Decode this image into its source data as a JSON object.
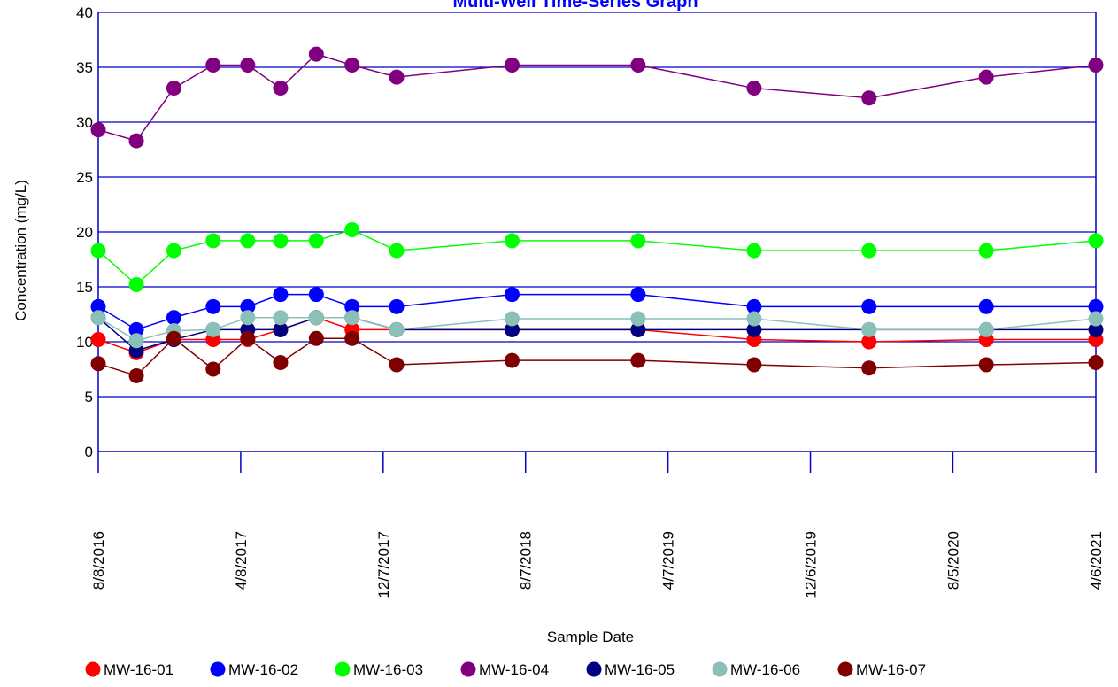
{
  "chart_data": {
    "type": "line",
    "title": "Multi-Well Time-Series Graph",
    "xlabel": "Sample Date",
    "ylabel": "Concentration (mg/L)",
    "ylim": [
      0,
      40
    ],
    "yticks": [
      0,
      5,
      10,
      15,
      20,
      25,
      30,
      35,
      40
    ],
    "xlim": [
      "2016-08-08",
      "2021-04-06"
    ],
    "xtick_labels": [
      "8/8/2016",
      "4/8/2017",
      "12/7/2017",
      "8/7/2018",
      "4/7/2019",
      "12/6/2019",
      "8/5/2020",
      "4/6/2021"
    ],
    "xtick_dates": [
      "2016-08-08",
      "2017-04-08",
      "2017-12-07",
      "2018-08-07",
      "2019-04-07",
      "2019-12-06",
      "2020-08-05",
      "2021-04-06"
    ],
    "grid": "horizontal",
    "legend": "bottom",
    "x": [
      "2016-08-08",
      "2016-10-12",
      "2016-12-15",
      "2017-02-20",
      "2017-04-20",
      "2017-06-15",
      "2017-08-15",
      "2017-10-15",
      "2017-12-30",
      "2018-07-15",
      "2019-02-15",
      "2019-09-01",
      "2020-03-15",
      "2020-10-01",
      "2021-04-06"
    ],
    "series": [
      {
        "name": "MW-16-01",
        "color": "#ff0000",
        "values": [
          10.2,
          9.0,
          10.2,
          10.2,
          10.2,
          11.1,
          12.2,
          11.1,
          11.1,
          11.1,
          11.1,
          10.2,
          10.0,
          10.2,
          10.2
        ]
      },
      {
        "name": "MW-16-02",
        "color": "#0000ff",
        "values": [
          13.2,
          11.1,
          12.2,
          13.2,
          13.2,
          14.3,
          14.3,
          13.2,
          13.2,
          14.3,
          14.3,
          13.2,
          13.2,
          13.2,
          13.2
        ]
      },
      {
        "name": "MW-16-03",
        "color": "#00ff00",
        "values": [
          18.3,
          15.2,
          18.3,
          19.2,
          19.2,
          19.2,
          19.2,
          20.2,
          18.3,
          19.2,
          19.2,
          18.3,
          18.3,
          18.3,
          19.2
        ]
      },
      {
        "name": "MW-16-04",
        "color": "#800080",
        "values": [
          29.3,
          28.3,
          33.1,
          35.2,
          35.2,
          33.1,
          36.2,
          35.2,
          34.1,
          35.2,
          35.2,
          33.1,
          32.2,
          34.1,
          35.2
        ]
      },
      {
        "name": "MW-16-05",
        "color": "#000080",
        "values": [
          12.2,
          9.2,
          10.2,
          11.1,
          11.1,
          11.1,
          12.2,
          12.2,
          11.1,
          11.1,
          11.1,
          11.1,
          11.1,
          11.1,
          11.1
        ]
      },
      {
        "name": "MW-16-06",
        "color": "#8ac0b8",
        "values": [
          12.2,
          10.1,
          11.0,
          11.1,
          12.2,
          12.2,
          12.2,
          12.2,
          11.1,
          12.1,
          12.1,
          12.1,
          11.1,
          11.1,
          12.1
        ]
      },
      {
        "name": "MW-16-07",
        "color": "#800000",
        "values": [
          8.0,
          6.9,
          10.3,
          7.5,
          10.3,
          8.1,
          10.3,
          10.3,
          7.9,
          8.3,
          8.3,
          7.9,
          7.6,
          7.9,
          8.1
        ]
      }
    ]
  }
}
